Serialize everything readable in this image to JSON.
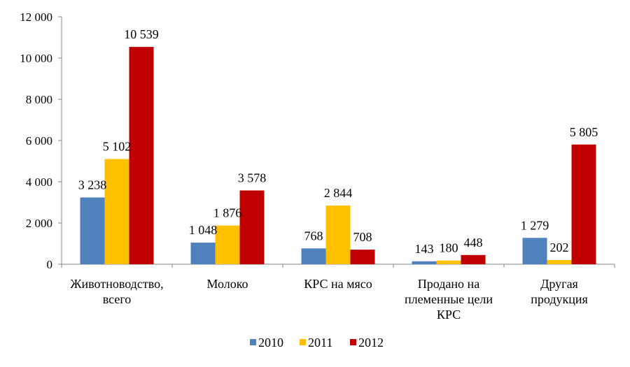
{
  "chart_data": {
    "type": "bar",
    "categories": [
      [
        "Животноводство,",
        "всего"
      ],
      [
        "Молоко"
      ],
      [
        "КРС на мясо"
      ],
      [
        "Продано на",
        "племенные цели",
        "КРС"
      ],
      [
        "Другая",
        "продукция"
      ]
    ],
    "series": [
      {
        "name": "2010",
        "color": "#4F81BD",
        "values": [
          3238,
          1048,
          768,
          143,
          1279
        ],
        "labels": [
          "3 238",
          "1 048",
          "768",
          "143",
          "1 279"
        ]
      },
      {
        "name": "2011",
        "color": "#FFC000",
        "values": [
          5102,
          1876,
          2844,
          180,
          202
        ],
        "labels": [
          "5 102",
          "1 876",
          "2 844",
          "180",
          "202"
        ]
      },
      {
        "name": "2012",
        "color": "#C00000",
        "values": [
          10539,
          3578,
          708,
          448,
          5805
        ],
        "labels": [
          "10 539",
          "3 578",
          "708",
          "448",
          "5 805"
        ]
      }
    ],
    "yticks": [
      0,
      2000,
      4000,
      6000,
      8000,
      10000,
      12000
    ],
    "ytick_labels": [
      "0",
      "2 000",
      "4 000",
      "6 000",
      "8 000",
      "10 000",
      "12 000"
    ],
    "ylim": [
      0,
      12000
    ],
    "legend": "bottom",
    "grid": false
  }
}
